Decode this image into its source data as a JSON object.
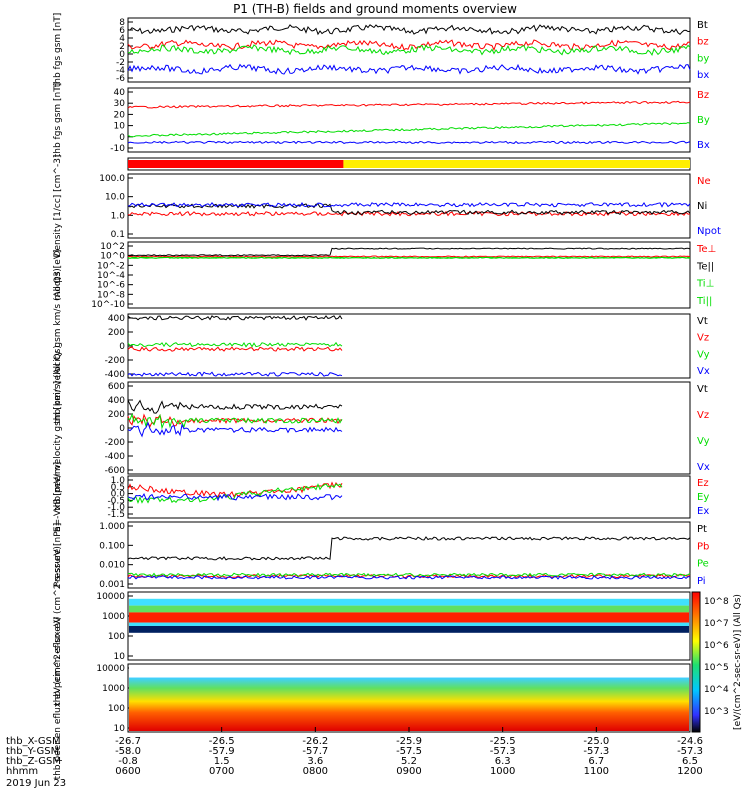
{
  "title": "P1 (TH-B) fields and ground moments overview",
  "footer": {
    "rows": [
      {
        "label": "thb_X-GSM",
        "values": [
          "-26.7",
          "-26.5",
          "-26.2",
          "-25.9",
          "-25.5",
          "-25.0",
          "-24.6"
        ]
      },
      {
        "label": "thb_Y-GSM",
        "values": [
          "-58.0",
          "-57.9",
          "-57.7",
          "-57.5",
          "-57.3",
          "-57.3",
          "-57.3"
        ]
      },
      {
        "label": "thb_Z-GSM",
        "values": [
          "-0.8",
          "1.5",
          "3.6",
          "5.2",
          "6.3",
          "6.7",
          "6.5"
        ]
      },
      {
        "label": "hhmm",
        "values": [
          "0600",
          "0700",
          "0800",
          "0900",
          "1000",
          "1100",
          "1200"
        ]
      }
    ],
    "date": "2019 Jun 23"
  },
  "colorbar": {
    "labels": [
      "10^8",
      "10^7",
      "10^6",
      "10^5",
      "10^4",
      "10^3"
    ],
    "title": "[eV/(cm^2-sec-sr-eV)] (All Qs)"
  },
  "colors": {
    "black": "#000000",
    "red": "#ff0000",
    "green": "#00dd00",
    "blue": "#0000ff",
    "yellow": "#ffee00"
  },
  "chart_data": [
    {
      "type": "line",
      "ylabel": "thb fgs gsm [nT]",
      "ylim": [
        -6,
        8
      ],
      "yticks": [
        "8",
        "6",
        "4",
        "2",
        "0",
        "-2",
        "-4",
        "-6"
      ],
      "series": [
        {
          "name": "Bt",
          "color": "#000000",
          "level": 4.5
        },
        {
          "name": "bz",
          "color": "#ff0000",
          "level": 2
        },
        {
          "name": "by",
          "color": "#00dd00",
          "level": 1.5
        },
        {
          "name": "bx",
          "color": "#0000ff",
          "level": -3.5
        }
      ]
    },
    {
      "type": "line",
      "ylabel": "thb fgs gsm [nT]",
      "ylim": [
        -15,
        40
      ],
      "yticks": [
        "40",
        "30",
        "20",
        "10",
        "0",
        "-10"
      ],
      "series": [
        {
          "name": "Bz",
          "color": "#ff0000",
          "level": 30
        },
        {
          "name": "By",
          "color": "#00dd00",
          "level": 15
        },
        {
          "name": "Bx",
          "color": "#0000ff",
          "level": 0
        }
      ]
    },
    {
      "type": "bar",
      "ylabel": "",
      "segments": [
        {
          "from": "0600",
          "to": "0818",
          "color": "#ff0000"
        },
        {
          "from": "0818",
          "to": "1200",
          "color": "#ffee00"
        }
      ]
    },
    {
      "type": "line",
      "ylabel": "Density [1/cc] [cm^-3]",
      "yticks": [
        "100.0",
        "10.0",
        "1.0",
        "0.1"
      ],
      "series": [
        {
          "name": "Ne",
          "color": "#ff0000"
        },
        {
          "name": "Ni",
          "color": "#000000"
        },
        {
          "name": "Npot",
          "color": "#0000ff"
        }
      ]
    },
    {
      "type": "line",
      "ylabel": "moqt3 [eV]",
      "yticks": [
        "10^2",
        "10^0",
        "10^-2",
        "10^-4",
        "10^-6",
        "10^-8",
        "10^-10"
      ],
      "series": [
        {
          "name": "Te⊥",
          "color": "#ff0000"
        },
        {
          "name": "Te||",
          "color": "#000000"
        },
        {
          "name": "Ti⊥",
          "color": "#00dd00"
        },
        {
          "name": "Ti||",
          "color": "#00dd00"
        }
      ]
    },
    {
      "type": "line",
      "ylabel": "thb peir velocity gsm km/s (All Qs)",
      "ylim": [
        -400,
        400
      ],
      "yticks": [
        "400",
        "200",
        "0",
        "-200",
        "-400"
      ],
      "series": [
        {
          "name": "Vt",
          "color": "#000000"
        },
        {
          "name": "Vz",
          "color": "#ff0000"
        },
        {
          "name": "Vy",
          "color": "#00dd00"
        },
        {
          "name": "Vx",
          "color": "#0000ff"
        }
      ]
    },
    {
      "type": "line",
      "ylabel": "thb peer velocity gsm [km/s] (All Qs)",
      "ylim": [
        -600,
        600
      ],
      "yticks": [
        "600",
        "400",
        "200",
        "0",
        "-200",
        "-400",
        "-600"
      ],
      "series": [
        {
          "name": "Vt",
          "color": "#000000"
        },
        {
          "name": "Vz",
          "color": "#ff0000"
        },
        {
          "name": "Vy",
          "color": "#00dd00"
        },
        {
          "name": "Vx",
          "color": "#0000ff"
        }
      ]
    },
    {
      "type": "line",
      "ylabel": "E=-VxB [mV/m]",
      "ylim": [
        -1.5,
        1.0
      ],
      "yticks": [
        "1.0",
        "0.5",
        "0.0",
        "-0.5",
        "-1.0",
        "-1.5"
      ],
      "series": [
        {
          "name": "Ez",
          "color": "#ff0000"
        },
        {
          "name": "Ey",
          "color": "#00dd00"
        },
        {
          "name": "Ex",
          "color": "#0000ff"
        }
      ]
    },
    {
      "type": "line",
      "ylabel": "Pressure [nPa]",
      "yticks": [
        "1.000",
        "0.100",
        "0.010",
        "0.001"
      ],
      "series": [
        {
          "name": "Pt",
          "color": "#000000"
        },
        {
          "name": "Pb",
          "color": "#ff0000"
        },
        {
          "name": "Pe",
          "color": "#00dd00"
        },
        {
          "name": "Pi",
          "color": "#0000ff"
        }
      ]
    },
    {
      "type": "heatmap",
      "ylabel": "thb peir en eflux eV (cm^2-s-sr-eV)",
      "yticks": [
        "10000",
        "1000",
        "100",
        "10"
      ]
    },
    {
      "type": "heatmap",
      "ylabel": "thb peer en eflux eV (cm^2-s-sr-eV)",
      "yticks": [
        "10000",
        "1000",
        "100",
        "10"
      ]
    }
  ]
}
